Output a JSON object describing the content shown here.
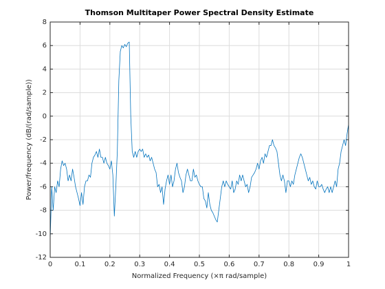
{
  "chart_data": {
    "type": "line",
    "title": "Thomson Multitaper Power Spectral Density Estimate",
    "xlabel": "Normalized Frequency  (×π rad/sample)",
    "ylabel": "Power/frequency (dB/(rad/sample))",
    "xlim": [
      0,
      1
    ],
    "ylim": [
      -12,
      8
    ],
    "xticks": [
      0,
      0.1,
      0.2,
      0.3,
      0.4,
      0.5,
      0.6,
      0.7,
      0.8,
      0.9,
      1
    ],
    "yticks": [
      -12,
      -10,
      -8,
      -6,
      -4,
      -2,
      0,
      2,
      4,
      6,
      8
    ],
    "grid": true,
    "x": [
      0,
      0.005,
      0.01,
      0.015,
      0.02,
      0.025,
      0.03,
      0.035,
      0.04,
      0.045,
      0.05,
      0.055,
      0.06,
      0.065,
      0.07,
      0.075,
      0.08,
      0.085,
      0.09,
      0.095,
      0.1,
      0.105,
      0.11,
      0.115,
      0.12,
      0.125,
      0.13,
      0.135,
      0.14,
      0.145,
      0.15,
      0.155,
      0.16,
      0.165,
      0.17,
      0.175,
      0.18,
      0.185,
      0.19,
      0.195,
      0.2,
      0.205,
      0.21,
      0.215,
      0.22,
      0.225,
      0.23,
      0.235,
      0.24,
      0.245,
      0.25,
      0.255,
      0.26,
      0.265,
      0.27,
      0.275,
      0.28,
      0.285,
      0.29,
      0.295,
      0.3,
      0.305,
      0.31,
      0.315,
      0.32,
      0.325,
      0.33,
      0.335,
      0.34,
      0.345,
      0.35,
      0.355,
      0.36,
      0.365,
      0.37,
      0.375,
      0.38,
      0.385,
      0.39,
      0.395,
      0.4,
      0.405,
      0.41,
      0.415,
      0.42,
      0.425,
      0.43,
      0.435,
      0.44,
      0.445,
      0.45,
      0.455,
      0.46,
      0.465,
      0.47,
      0.475,
      0.48,
      0.485,
      0.49,
      0.495,
      0.5,
      0.505,
      0.51,
      0.515,
      0.52,
      0.525,
      0.53,
      0.535,
      0.54,
      0.545,
      0.55,
      0.555,
      0.56,
      0.565,
      0.57,
      0.575,
      0.58,
      0.585,
      0.59,
      0.595,
      0.6,
      0.605,
      0.61,
      0.615,
      0.62,
      0.625,
      0.63,
      0.635,
      0.64,
      0.645,
      0.65,
      0.655,
      0.66,
      0.665,
      0.67,
      0.675,
      0.68,
      0.685,
      0.69,
      0.695,
      0.7,
      0.705,
      0.71,
      0.715,
      0.72,
      0.725,
      0.73,
      0.735,
      0.74,
      0.745,
      0.75,
      0.755,
      0.76,
      0.765,
      0.77,
      0.775,
      0.78,
      0.785,
      0.79,
      0.795,
      0.8,
      0.805,
      0.81,
      0.815,
      0.82,
      0.825,
      0.83,
      0.835,
      0.84,
      0.845,
      0.85,
      0.855,
      0.86,
      0.865,
      0.87,
      0.875,
      0.88,
      0.885,
      0.89,
      0.895,
      0.9,
      0.905,
      0.91,
      0.915,
      0.92,
      0.925,
      0.93,
      0.935,
      0.94,
      0.945,
      0.95,
      0.955,
      0.96,
      0.965,
      0.97,
      0.975,
      0.98,
      0.985,
      0.99,
      0.995,
      1
    ],
    "series": [
      {
        "color": "#0072bd",
        "values": [
          -10.5,
          -6,
          -8,
          -6,
          -6.5,
          -5.5,
          -6,
          -4.5,
          -3.8,
          -4.2,
          -4,
          -4.5,
          -5.5,
          -5,
          -5.5,
          -4.5,
          -5.2,
          -6,
          -6.5,
          -7,
          -7.6,
          -6.5,
          -7.5,
          -6,
          -5.5,
          -5.5,
          -5,
          -5.2,
          -4,
          -3.5,
          -3.3,
          -3,
          -3.5,
          -2.8,
          -3.5,
          -3.5,
          -4,
          -3.5,
          -4,
          -4.2,
          -4.5,
          -3.8,
          -5,
          -8.5,
          -6,
          -3,
          3,
          5.5,
          6,
          5.8,
          6.1,
          5.9,
          6.2,
          6.3,
          0,
          -3,
          -3.5,
          -3,
          -3.5,
          -3,
          -2.8,
          -3,
          -2.8,
          -3.5,
          -3.2,
          -3.5,
          -3.3,
          -3.8,
          -3.5,
          -4,
          -4.5,
          -4.8,
          -6,
          -5.8,
          -6.5,
          -6,
          -7.5,
          -6.2,
          -5.5,
          -5,
          -5.8,
          -5,
          -6,
          -5.5,
          -4.5,
          -4,
          -4.8,
          -5.2,
          -5.5,
          -6.5,
          -6,
          -5,
          -4.5,
          -5,
          -5.5,
          -5.5,
          -4.5,
          -5.2,
          -5,
          -5.5,
          -5.8,
          -6,
          -6,
          -7,
          -7.2,
          -7.8,
          -6.5,
          -7.5,
          -8,
          -8.2,
          -8.5,
          -8.8,
          -9,
          -8,
          -7,
          -6,
          -5.5,
          -6,
          -5.5,
          -5.8,
          -6,
          -6.2,
          -5.5,
          -6.5,
          -6.2,
          -5.5,
          -5.8,
          -5,
          -5.5,
          -5,
          -5.5,
          -6,
          -5.8,
          -6.5,
          -6,
          -5.2,
          -5,
          -4.8,
          -4.5,
          -4,
          -4.5,
          -3.8,
          -3.5,
          -4,
          -3.2,
          -3.5,
          -3,
          -2.5,
          -2.5,
          -2,
          -2.5,
          -2.7,
          -3,
          -4,
          -5,
          -5.5,
          -5,
          -5.5,
          -6.5,
          -5.5,
          -5.5,
          -6,
          -5.5,
          -5.8,
          -5,
          -4.5,
          -4,
          -3.5,
          -3.2,
          -3.5,
          -4,
          -4.5,
          -5,
          -5.5,
          -5.2,
          -5.8,
          -5.5,
          -6,
          -6.2,
          -5.5,
          -6,
          -6,
          -5.8,
          -6.2,
          -6.5,
          -6.2,
          -6,
          -6.5,
          -6,
          -6.5,
          -6,
          -5.5,
          -6,
          -4.5,
          -4,
          -3,
          -2.5,
          -2,
          -2.5,
          -1.5,
          -0.7
        ]
      }
    ]
  }
}
